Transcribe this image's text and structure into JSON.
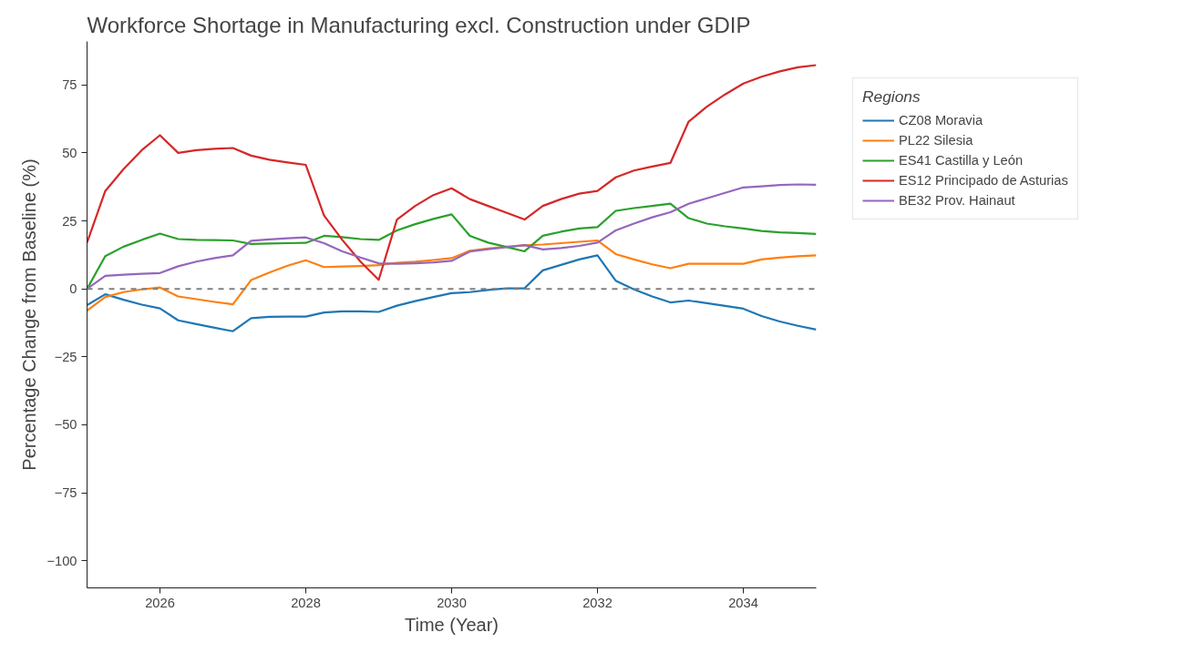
{
  "chart_data": {
    "type": "line",
    "title": "Workforce Shortage in Manufacturing excl. Construction under GDIP",
    "xlabel": "Time (Year)",
    "ylabel": "Percentage Change from Baseline (%)",
    "legend_title": "Regions",
    "legend": "top right",
    "grid": false,
    "marker": "none",
    "line_style": "solid",
    "xlim": [
      2025,
      2035
    ],
    "ylim": [
      -110,
      91
    ],
    "xticks": [
      2026,
      2028,
      2030,
      2032,
      2034
    ],
    "yticks": [
      -100,
      -75,
      -50,
      -25,
      0,
      25,
      50,
      75
    ],
    "x": [
      2025,
      2025.25,
      2025.5,
      2025.75,
      2026,
      2026.25,
      2026.5,
      2026.75,
      2027,
      2027.25,
      2027.5,
      2027.75,
      2028,
      2028.25,
      2028.5,
      2028.75,
      2029,
      2029.25,
      2029.5,
      2029.75,
      2030,
      2030.25,
      2030.5,
      2030.75,
      2031,
      2031.25,
      2031.5,
      2031.75,
      2032,
      2032.25,
      2032.5,
      2032.75,
      2033,
      2033.25,
      2033.5,
      2033.75,
      2034,
      2034.25,
      2034.5,
      2034.75,
      2035
    ],
    "ref_lines": [
      {
        "axis": "y",
        "value": 0,
        "label": null,
        "color": "#808080",
        "line_style": "dashed"
      }
    ],
    "series": [
      {
        "name": "CZ08 Moravia",
        "color": "#1f77b4",
        "values": [
          -6,
          -2,
          -4,
          -5.8,
          -7.2,
          -11.6,
          -13,
          -14.3,
          -15.6,
          -10.8,
          -10.3,
          -10.2,
          -10.2,
          -8.7,
          -8.3,
          -8.3,
          -8.5,
          -6.2,
          -4.5,
          -3,
          -1.6,
          -1.2,
          -0.4,
          0.2,
          0.2,
          6.8,
          8.8,
          10.8,
          12.3,
          3,
          -0.2,
          -2.8,
          -5,
          -4.3,
          -5.3,
          -6.3,
          -7.3,
          -10,
          -12,
          -13.6,
          -15
        ]
      },
      {
        "name": "PL22 Silesia",
        "color": "#ff7f0e",
        "values": [
          -8,
          -3,
          -1.2,
          -0.2,
          0.5,
          -2.8,
          -3.8,
          -4.8,
          -5.7,
          3.2,
          6,
          8.5,
          10.5,
          8,
          8.2,
          8.4,
          8.7,
          9.6,
          10,
          10.6,
          11.3,
          14,
          14.8,
          15.5,
          16,
          16.3,
          16.8,
          17.3,
          17.8,
          12.8,
          10.8,
          9,
          7.6,
          9.2,
          9.2,
          9.2,
          9.2,
          10.8,
          11.5,
          12,
          12.3
        ]
      },
      {
        "name": "ES41 Castilla y León",
        "color": "#2ca02c",
        "values": [
          0,
          12,
          15.5,
          18,
          20.3,
          18.3,
          18,
          17.9,
          17.8,
          16.5,
          16.7,
          16.8,
          16.9,
          19.5,
          19,
          18.3,
          18,
          21.5,
          23.8,
          25.7,
          27.4,
          19.5,
          17,
          15.4,
          13.8,
          19.5,
          21,
          22.2,
          22.7,
          28.7,
          29.7,
          30.5,
          31.3,
          26,
          24,
          23,
          22.2,
          21.3,
          20.8,
          20.5,
          20.2
        ]
      },
      {
        "name": "ES12 Principado de Asturias",
        "color": "#d62728",
        "values": [
          17,
          36,
          44,
          51,
          56.5,
          50,
          51,
          51.5,
          51.8,
          49,
          47.5,
          46.5,
          45.6,
          27,
          18,
          10,
          3.3,
          25.5,
          30.5,
          34.5,
          37,
          33,
          30.5,
          28,
          25.5,
          30.5,
          33,
          35,
          36,
          41,
          43.5,
          45,
          46.3,
          61.5,
          67,
          71.5,
          75.5,
          78,
          80,
          81.5,
          82.3
        ]
      },
      {
        "name": "BE32 Prov. Hainaut",
        "color": "#9467bd",
        "values": [
          0,
          4.8,
          5.2,
          5.5,
          5.8,
          8.3,
          10,
          11.3,
          12.3,
          17.7,
          18.2,
          18.6,
          18.9,
          16.8,
          13.8,
          11.5,
          9.4,
          9.2,
          9.4,
          9.7,
          10.3,
          13.7,
          14.6,
          15.3,
          16.1,
          14.5,
          15,
          15.8,
          17,
          21.5,
          24,
          26.3,
          28.2,
          31.3,
          33.3,
          35.3,
          37.3,
          37.7,
          38.2,
          38.4,
          38.3
        ]
      }
    ]
  }
}
